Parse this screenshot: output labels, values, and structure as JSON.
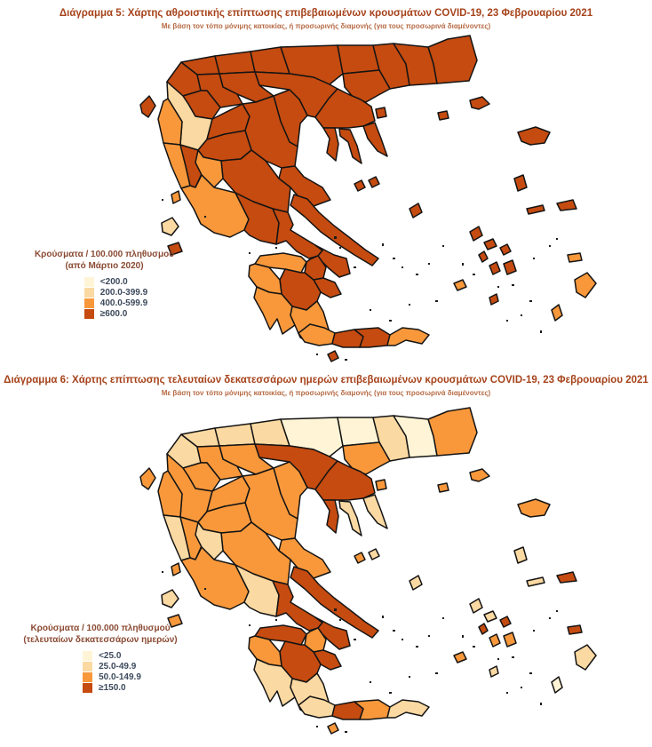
{
  "palette": {
    "c1": "#FFF5D6",
    "c2": "#FBD9A2",
    "c3": "#F8983B",
    "c4": "#C54B10",
    "border": "#141414",
    "speck": "#1c1c1c",
    "title_color": "#A6431B",
    "subtitle_color": "#B66A44",
    "legend_title_color": "#8A4A33",
    "legend_label_color": "#3D4A5C"
  },
  "figures": [
    {
      "title": "Διάγραμμα 5: Χάρτης αθροιστικής επίπτωσης επιβεβαιωμένων κρουσμάτων COVID-19, 23 Φεβρουαρίου 2021",
      "subtitle": "Με βάση τον τόπο μόνιμης κατοικίας, ή προσωρινής διαμονής (για τους προσωρινά διαμένοντες)",
      "legend": {
        "title_line1": "Κρούσματα / 100.000 πληθυσμού",
        "title_line2": "(από Μάρτιο 2020)",
        "items": [
          {
            "label": "<200.0",
            "category": 1
          },
          {
            "label": "200.0-399.9",
            "category": 2
          },
          {
            "label": "400.0-599.9",
            "category": 3
          },
          {
            "label": "≥600.0",
            "category": 4
          }
        ]
      },
      "region_categories": {
        "kastoria": 4,
        "florina": 4,
        "pella": 4,
        "kilkis": 4,
        "serres": 4,
        "drama": 4,
        "xanthi": 4,
        "rhodopi": 4,
        "evros": 4,
        "kavala": 4,
        "thessaloniki": 4,
        "imathia": 4,
        "kozani": 4,
        "grevena": 4,
        "pieria": 4,
        "chalkidiki": 4,
        "kassandra": 4,
        "sithonia": 4,
        "athos": 4,
        "ioannina": 2,
        "thesprotia": 3,
        "preveza": 3,
        "arta": 4,
        "trikala": 4,
        "larissa": 4,
        "karditsa": 4,
        "magnesia": 4,
        "phthiotis": 4,
        "evrytania": 3,
        "aetolia": 3,
        "phocis": 4,
        "boeotia": 4,
        "attica": 4,
        "euboea": 4,
        "achaia": 3,
        "corinthia": 4,
        "argolis": 4,
        "arcadia": 4,
        "elis": 3,
        "messinia": 3,
        "laconia": 3,
        "chania": 3,
        "rethymno": 4,
        "heraklion": 4,
        "lasithi": 3,
        "corfu": 4,
        "lefkada": 3,
        "kefalonia": 2,
        "zakynthos": 4,
        "kythira": 4,
        "thasos": 4,
        "samothrace": 4,
        "limnos": 4,
        "lesbos": 4,
        "chios": 4,
        "samos": 4,
        "ikaria": 4,
        "sporades_a": 4,
        "sporades_b": 4,
        "skyros": 4,
        "andros": 4,
        "tinos": 4,
        "mykonos": 4,
        "syros": 4,
        "paros": 4,
        "naxos": 4,
        "milos": 3,
        "santorini": 4,
        "kos": 3,
        "rhodes": 3,
        "karpathos": 3
      }
    },
    {
      "title": "Διάγραμμα 6: Χάρτης επίπτωσης τελευταίων δεκατεσσάρων ημερών επιβεβαιωμένων κρουσμάτων COVID-19, 23 Φεβρουαρίου 2021",
      "subtitle": "Με βάση τον τόπο μόνιμης κατοικίας, ή προσωρινής διαμονής (για τους προσωρινά διαμένοντες)",
      "legend": {
        "title_line1": "Κρούσματα / 100.000 πληθυσμού",
        "title_line2": "(τελευταίων δεκατεσσάρων ημερών)",
        "items": [
          {
            "label": "<25.0",
            "category": 1
          },
          {
            "label": "25.0-49.9",
            "category": 2
          },
          {
            "label": "50.0-149.9",
            "category": 3
          },
          {
            "label": "≥150.0",
            "category": 4
          }
        ]
      },
      "region_categories": {
        "kastoria": 2,
        "florina": 2,
        "pella": 2,
        "kilkis": 2,
        "serres": 1,
        "drama": 1,
        "xanthi": 2,
        "rhodopi": 1,
        "evros": 3,
        "kavala": 3,
        "thessaloniki": 4,
        "imathia": 3,
        "kozani": 3,
        "grevena": 3,
        "pieria": 3,
        "chalkidiki": 4,
        "kassandra": 4,
        "sithonia": 2,
        "athos": 2,
        "ioannina": 3,
        "thesprotia": 3,
        "preveza": 2,
        "arta": 3,
        "trikala": 3,
        "larissa": 3,
        "karditsa": 3,
        "magnesia": 3,
        "phthiotis": 3,
        "evrytania": 2,
        "aetolia": 3,
        "phocis": 2,
        "boeotia": 4,
        "attica": 4,
        "euboea": 4,
        "achaia": 4,
        "corinthia": 3,
        "argolis": 4,
        "arcadia": 4,
        "elis": 3,
        "messinia": 2,
        "laconia": 2,
        "chania": 2,
        "rethymno": 4,
        "heraklion": 3,
        "lasithi": 2,
        "corfu": 3,
        "lefkada": 3,
        "kefalonia": 2,
        "zakynthos": 3,
        "kythira": 3,
        "thasos": 3,
        "samothrace": 3,
        "limnos": 3,
        "lesbos": 3,
        "chios": 2,
        "samos": 4,
        "ikaria": 2,
        "sporades_a": 3,
        "sporades_b": 2,
        "skyros": 2,
        "andros": 2,
        "tinos": 2,
        "mykonos": 4,
        "syros": 4,
        "paros": 3,
        "naxos": 3,
        "milos": 3,
        "santorini": 2,
        "kos": 4,
        "rhodes": 2,
        "karpathos": 1
      }
    }
  ]
}
